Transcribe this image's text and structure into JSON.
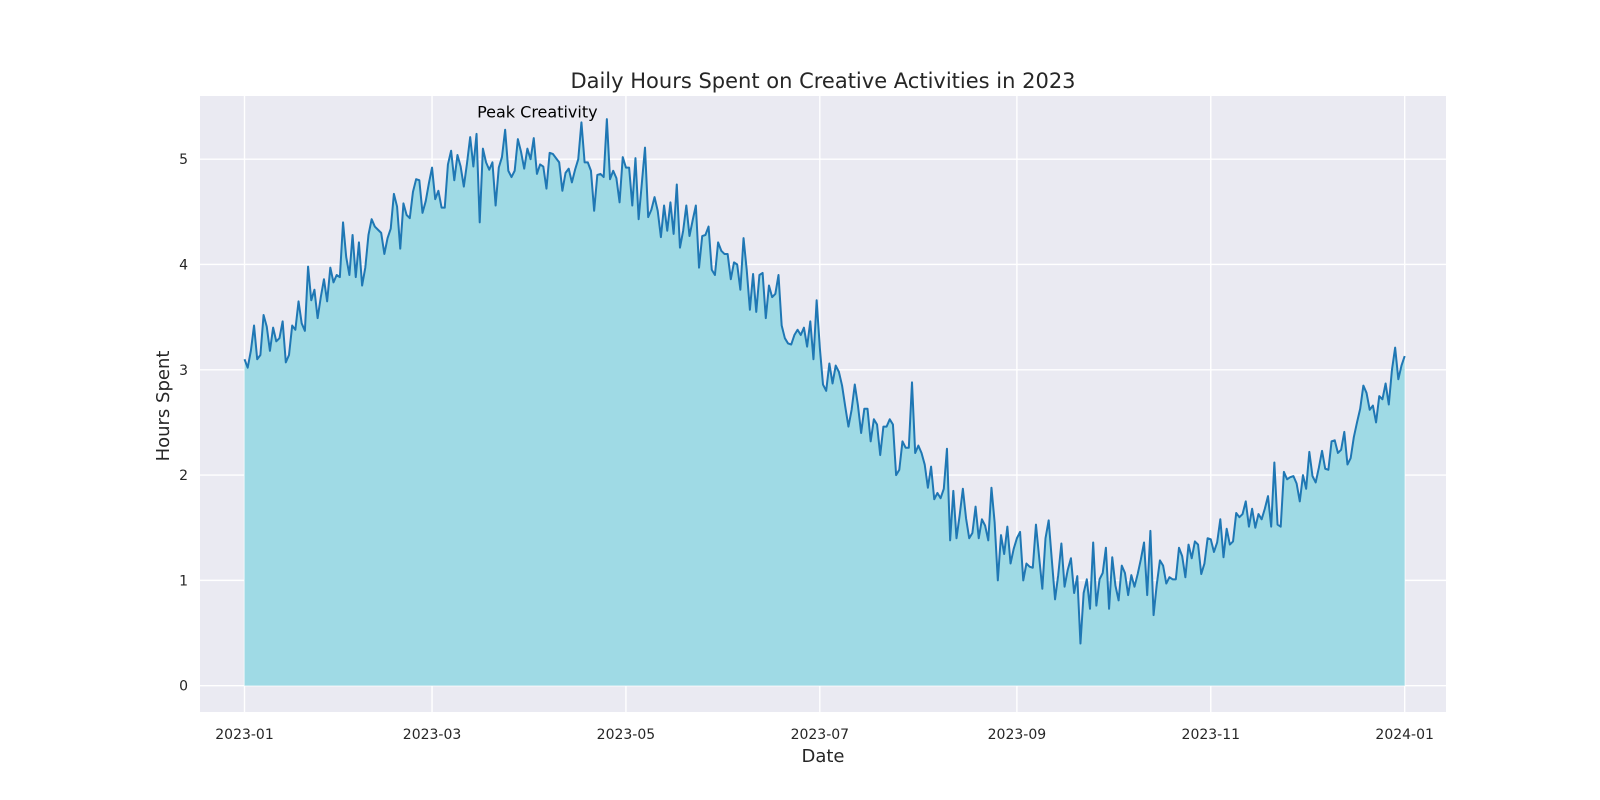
{
  "chart_data": {
    "type": "area",
    "title": "Daily Hours Spent on Creative Activities in 2023",
    "xlabel": "Date",
    "ylabel": "Hours Spent",
    "x_range": [
      "2022-12-18",
      "2024-01-14"
    ],
    "ylim": [
      -0.25,
      5.6
    ],
    "x_ticks": [
      "2023-01-01",
      "2023-03-01",
      "2023-05-01",
      "2023-07-01",
      "2023-09-01",
      "2023-11-01",
      "2024-01-01"
    ],
    "x_tick_labels": [
      "2023-01",
      "2023-03",
      "2023-05",
      "2023-07",
      "2023-09",
      "2023-11",
      "2024-01"
    ],
    "y_ticks": [
      0,
      1,
      2,
      3,
      4,
      5
    ],
    "y_tick_labels": [
      "0",
      "1",
      "2",
      "3",
      "4",
      "5"
    ],
    "grid": true,
    "colors": {
      "line": "#1f77b4",
      "fill": "#9fdae5",
      "plot_background": "#eaeaf2",
      "grid": "#ffffff"
    },
    "annotation": {
      "text": "Peak Creativity",
      "x": "2023-04-22",
      "y": 5.35
    },
    "series": [
      {
        "start_date": "2023-01-01",
        "frequency": "1 day",
        "values": [
          3.1,
          3.02,
          3.18,
          3.42,
          3.1,
          3.14,
          3.52,
          3.41,
          3.18,
          3.4,
          3.27,
          3.3,
          3.46,
          3.07,
          3.14,
          3.42,
          3.38,
          3.65,
          3.44,
          3.37,
          3.98,
          3.66,
          3.76,
          3.49,
          3.69,
          3.86,
          3.65,
          3.97,
          3.83,
          3.9,
          3.88,
          4.4,
          4.07,
          3.9,
          4.28,
          3.88,
          4.21,
          3.8,
          3.97,
          4.28,
          4.43,
          4.36,
          4.33,
          4.3,
          4.1,
          4.25,
          4.34,
          4.67,
          4.55,
          4.15,
          4.58,
          4.47,
          4.44,
          4.69,
          4.81,
          4.8,
          4.49,
          4.6,
          4.77,
          4.92,
          4.62,
          4.7,
          4.54,
          4.54,
          4.95,
          5.08,
          4.8,
          5.04,
          4.93,
          4.74,
          4.96,
          5.21,
          4.93,
          5.24,
          4.4,
          5.1,
          4.97,
          4.9,
          4.97,
          4.56,
          4.92,
          5.02,
          5.28,
          4.89,
          4.83,
          4.89,
          5.19,
          5.07,
          4.91,
          5.1,
          5.0,
          5.2,
          4.86,
          4.95,
          4.93,
          4.72,
          5.06,
          5.05,
          5.01,
          4.97,
          4.7,
          4.87,
          4.91,
          4.78,
          4.9,
          5.0,
          5.35,
          4.97,
          4.97,
          4.89,
          4.51,
          4.85,
          4.86,
          4.83,
          5.38,
          4.81,
          4.89,
          4.82,
          4.59,
          5.02,
          4.92,
          4.92,
          4.56,
          5.01,
          4.43,
          4.77,
          5.11,
          4.45,
          4.52,
          4.64,
          4.51,
          4.26,
          4.56,
          4.32,
          4.59,
          4.29,
          4.76,
          4.16,
          4.32,
          4.56,
          4.27,
          4.42,
          4.56,
          3.97,
          4.27,
          4.28,
          4.36,
          3.95,
          3.9,
          4.21,
          4.13,
          4.1,
          4.1,
          3.86,
          4.02,
          4.0,
          3.76,
          4.25,
          3.95,
          3.57,
          3.91,
          3.55,
          3.9,
          3.92,
          3.49,
          3.8,
          3.69,
          3.72,
          3.9,
          3.42,
          3.3,
          3.25,
          3.24,
          3.33,
          3.38,
          3.33,
          3.4,
          3.22,
          3.46,
          3.1,
          3.66,
          3.21,
          2.86,
          2.8,
          3.06,
          2.87,
          3.04,
          2.98,
          2.85,
          2.65,
          2.46,
          2.62,
          2.86,
          2.66,
          2.4,
          2.63,
          2.63,
          2.32,
          2.53,
          2.48,
          2.19,
          2.46,
          2.46,
          2.53,
          2.48,
          2.0,
          2.05,
          2.32,
          2.26,
          2.26,
          2.88,
          2.21,
          2.28,
          2.21,
          2.1,
          1.88,
          2.08,
          1.77,
          1.83,
          1.78,
          1.87,
          2.25,
          1.38,
          1.85,
          1.4,
          1.62,
          1.87,
          1.59,
          1.4,
          1.45,
          1.7,
          1.4,
          1.58,
          1.52,
          1.38,
          1.88,
          1.55,
          1.0,
          1.43,
          1.25,
          1.51,
          1.16,
          1.3,
          1.4,
          1.46,
          1.0,
          1.16,
          1.13,
          1.12,
          1.53,
          1.22,
          0.92,
          1.4,
          1.57,
          1.19,
          0.82,
          1.05,
          1.35,
          0.94,
          1.1,
          1.21,
          0.88,
          1.04,
          0.4,
          0.88,
          1.01,
          0.73,
          1.36,
          0.76,
          1.01,
          1.07,
          1.31,
          0.73,
          1.22,
          0.95,
          0.81,
          1.14,
          1.07,
          0.86,
          1.05,
          0.94,
          1.06,
          1.2,
          1.36,
          0.86,
          1.47,
          0.67,
          0.96,
          1.19,
          1.14,
          0.97,
          1.03,
          1.01,
          1.01,
          1.31,
          1.23,
          1.03,
          1.34,
          1.21,
          1.37,
          1.34,
          1.06,
          1.16,
          1.4,
          1.39,
          1.27,
          1.36,
          1.58,
          1.22,
          1.49,
          1.34,
          1.37,
          1.64,
          1.6,
          1.63,
          1.75,
          1.51,
          1.68,
          1.5,
          1.63,
          1.58,
          1.68,
          1.8,
          1.51,
          2.12,
          1.53,
          1.51,
          2.03,
          1.96,
          1.98,
          1.99,
          1.92,
          1.75,
          2.0,
          1.87,
          2.22,
          1.99,
          1.93,
          2.07,
          2.23,
          2.06,
          2.05,
          2.32,
          2.33,
          2.21,
          2.24,
          2.41,
          2.1,
          2.16,
          2.36,
          2.5,
          2.63,
          2.85,
          2.78,
          2.62,
          2.66,
          2.5,
          2.75,
          2.72,
          2.87,
          2.67,
          3.0,
          3.21,
          2.91,
          3.04,
          3.13
        ]
      }
    ]
  }
}
